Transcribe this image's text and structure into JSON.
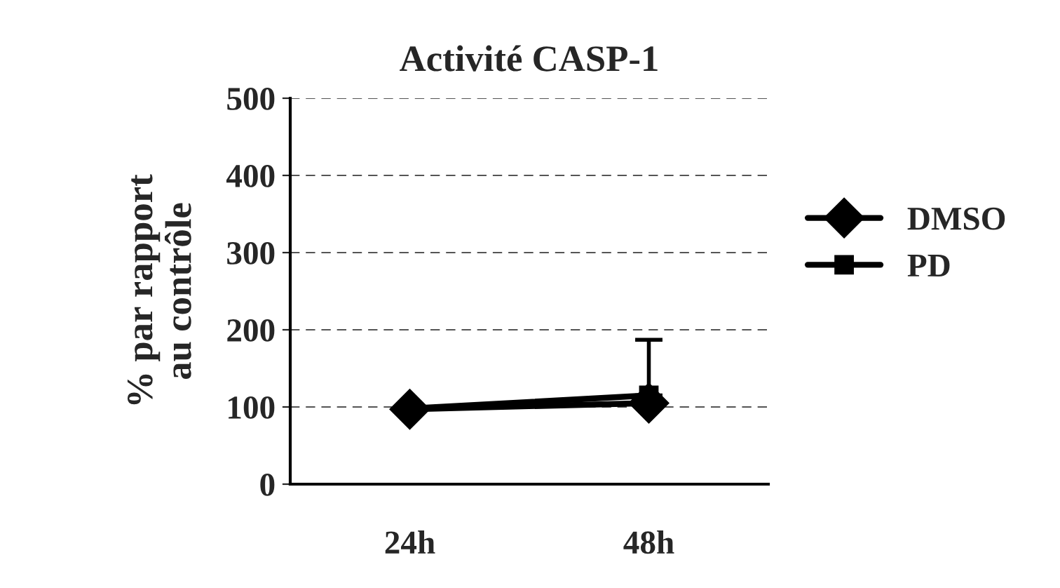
{
  "chart_data": {
    "type": "line",
    "title": "Activité CASP-1",
    "ylabel": "% par rapport\nau contrôle",
    "categories": [
      "24h",
      "48h"
    ],
    "series": [
      {
        "name": "DMSO",
        "color": "#000000",
        "marker": "diamond",
        "values": [
          97,
          105
        ]
      },
      {
        "name": "PD",
        "color": "#000000",
        "marker": "square",
        "values": [
          98,
          115
        ],
        "errors": [
          null,
          [
            115,
            187
          ]
        ]
      }
    ],
    "ylim": [
      0,
      500
    ],
    "yticks": [
      0,
      100,
      200,
      300,
      400,
      500
    ],
    "grid": "y",
    "legend": "right",
    "line_style": "solid"
  }
}
